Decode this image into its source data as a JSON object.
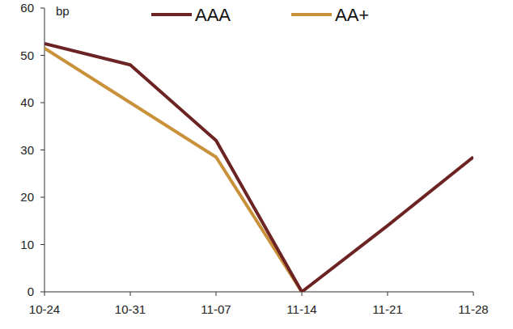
{
  "chart_data": {
    "type": "line",
    "y_label": "bp",
    "categories": [
      "10-24",
      "10-31",
      "11-07",
      "11-14",
      "11-21",
      "11-28"
    ],
    "series": [
      {
        "name": "AAA",
        "color": "#6b2323",
        "values": [
          52.5,
          48,
          32,
          0,
          14,
          28.5
        ]
      },
      {
        "name": "AA+",
        "color": "#c8913a",
        "values": [
          51.5,
          40,
          28.5,
          0,
          null,
          null
        ]
      }
    ],
    "ylim": [
      0,
      60
    ],
    "yticks": [
      0,
      10,
      20,
      30,
      40,
      50,
      60
    ],
    "grid": false,
    "legend": "top"
  }
}
